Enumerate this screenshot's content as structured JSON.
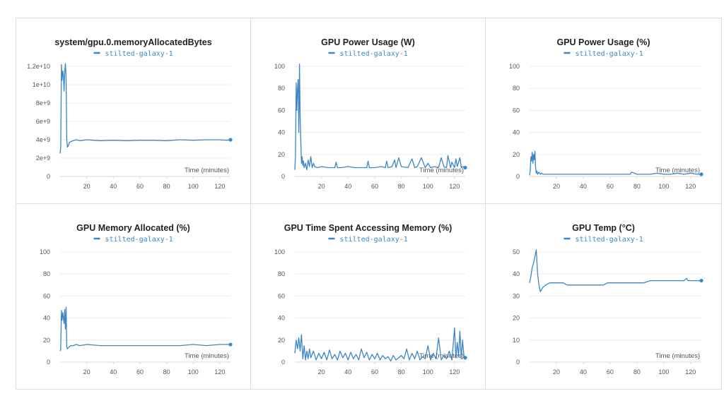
{
  "series_color": "#3d86c6",
  "chart_data": [
    {
      "type": "line",
      "title": "system/gpu.0.memoryAllocatedBytes",
      "legend": [
        "stilted-galaxy-1"
      ],
      "legend_position": "top-center",
      "xlabel": "Time (minutes)",
      "ylabel": "",
      "xlim": [
        0,
        128
      ],
      "ylim": [
        0,
        12000000000
      ],
      "xticks": [
        20,
        40,
        60,
        80,
        100,
        120
      ],
      "yticks": [
        0,
        2000000000,
        4000000000,
        6000000000,
        8000000000,
        10000000000,
        12000000000
      ],
      "ytick_labels": [
        "0",
        "2e+9",
        "4e+9",
        "6e+9",
        "8e+9",
        "1e+10",
        "1.2e+10"
      ],
      "grid": true,
      "series": [
        {
          "name": "stilted-galaxy-1",
          "x": [
            0,
            0.5,
            1,
            1.5,
            2,
            2.5,
            3,
            3.5,
            4,
            4.5,
            5,
            5.5,
            6,
            7,
            8,
            10,
            12,
            15,
            20,
            30,
            40,
            50,
            60,
            70,
            80,
            90,
            100,
            110,
            120,
            125,
            128
          ],
          "y": [
            2500000000,
            3200000000,
            12200000000,
            10500000000,
            11500000000,
            11000000000,
            9300000000,
            11500000000,
            12300000000,
            10800000000,
            4000000000,
            3200000000,
            3300000000,
            3700000000,
            3800000000,
            3900000000,
            4000000000,
            3900000000,
            4000000000,
            3900000000,
            3950000000,
            3900000000,
            3950000000,
            3950000000,
            3900000000,
            4000000000,
            3950000000,
            4000000000,
            4000000000,
            3950000000,
            4000000000
          ]
        }
      ]
    },
    {
      "type": "line",
      "title": "GPU Power Usage (W)",
      "legend": [
        "stilted-galaxy-1"
      ],
      "legend_position": "top-center",
      "xlabel": "Time (minutes)",
      "ylabel": "",
      "xlim": [
        0,
        128
      ],
      "ylim": [
        0,
        100
      ],
      "xticks": [
        20,
        40,
        60,
        80,
        100,
        120
      ],
      "yticks": [
        0,
        20,
        40,
        60,
        80,
        100
      ],
      "ytick_labels": [
        "0",
        "20",
        "40",
        "60",
        "80",
        "100"
      ],
      "grid": true,
      "series": [
        {
          "name": "stilted-galaxy-1",
          "x": [
            0,
            0.5,
            1,
            1.5,
            2,
            2.5,
            3,
            3.5,
            4,
            4.5,
            5,
            5.5,
            6,
            6.5,
            7,
            8,
            9,
            10,
            11,
            12,
            13,
            14,
            15,
            17,
            20,
            25,
            30,
            31,
            32,
            35,
            40,
            45,
            50,
            54,
            55,
            56,
            60,
            65,
            68,
            69,
            70,
            73,
            75,
            76,
            78,
            80,
            85,
            88,
            90,
            92,
            95,
            98,
            100,
            102,
            105,
            108,
            110,
            112,
            114,
            115,
            117,
            118,
            120,
            121,
            122,
            124,
            125,
            126,
            128
          ],
          "y": [
            6,
            18,
            85,
            60,
            80,
            88,
            40,
            102,
            55,
            30,
            12,
            18,
            10,
            14,
            8,
            12,
            6,
            15,
            9,
            18,
            8,
            12,
            9,
            8,
            9,
            8,
            8,
            13,
            8,
            8,
            9,
            8,
            8,
            8,
            14,
            8,
            8,
            9,
            8,
            14,
            8,
            9,
            15,
            8,
            17,
            9,
            8,
            16,
            8,
            9,
            17,
            8,
            12,
            8,
            9,
            8,
            17,
            9,
            8,
            19,
            8,
            13,
            8,
            16,
            9,
            17,
            8,
            9,
            8
          ]
        }
      ]
    },
    {
      "type": "line",
      "title": "GPU Power Usage (%)",
      "legend": [
        "stilted-galaxy-1"
      ],
      "legend_position": "top-center",
      "xlabel": "Time (minutes)",
      "ylabel": "",
      "xlim": [
        0,
        128
      ],
      "ylim": [
        0,
        100
      ],
      "xticks": [
        20,
        40,
        60,
        80,
        100,
        120
      ],
      "yticks": [
        0,
        20,
        40,
        60,
        80,
        100
      ],
      "ytick_labels": [
        "0",
        "20",
        "40",
        "60",
        "80",
        "100"
      ],
      "grid": true,
      "series": [
        {
          "name": "stilted-galaxy-1",
          "x": [
            0,
            0.5,
            1,
            1.5,
            2,
            2.5,
            3,
            3.5,
            4,
            4.5,
            5,
            5.5,
            6,
            7,
            8,
            9,
            10,
            12,
            15,
            20,
            30,
            40,
            50,
            60,
            70,
            75,
            76,
            80,
            90,
            95,
            100,
            105,
            110,
            115,
            120,
            125,
            128
          ],
          "y": [
            1,
            5,
            18,
            14,
            22,
            12,
            20,
            15,
            23,
            8,
            3,
            5,
            2,
            4,
            2,
            3,
            2,
            2,
            2,
            2,
            2,
            2,
            2,
            2,
            2,
            2,
            4,
            2,
            2,
            3,
            2,
            2,
            3,
            2,
            3,
            2,
            2
          ]
        }
      ]
    },
    {
      "type": "line",
      "title": "GPU Memory Allocated (%)",
      "legend": [
        "stilted-galaxy-1"
      ],
      "legend_position": "top-center",
      "xlabel": "Time (minutes)",
      "ylabel": "",
      "xlim": [
        0,
        128
      ],
      "ylim": [
        0,
        100
      ],
      "xticks": [
        20,
        40,
        60,
        80,
        100,
        120
      ],
      "yticks": [
        0,
        20,
        40,
        60,
        80,
        100
      ],
      "ytick_labels": [
        "0",
        "20",
        "40",
        "60",
        "80",
        "100"
      ],
      "grid": true,
      "series": [
        {
          "name": "stilted-galaxy-1",
          "x": [
            0,
            0.5,
            1,
            1.5,
            2,
            2.5,
            3,
            3.5,
            4,
            4.5,
            5,
            5.5,
            6,
            7,
            8,
            10,
            12,
            15,
            20,
            30,
            40,
            50,
            60,
            70,
            80,
            90,
            100,
            110,
            120,
            125,
            128
          ],
          "y": [
            10,
            12,
            47,
            38,
            45,
            40,
            35,
            48,
            30,
            50,
            14,
            12,
            13,
            14,
            15,
            15,
            16,
            15,
            16,
            15,
            15,
            15,
            15,
            15,
            15,
            15,
            16,
            15,
            16,
            16,
            16
          ]
        }
      ]
    },
    {
      "type": "line",
      "title": "GPU Time Spent Accessing Memory (%)",
      "legend": [
        "stilted-galaxy-1"
      ],
      "legend_position": "top-center",
      "xlabel": "Time (minutes)",
      "ylabel": "",
      "xlim": [
        0,
        128
      ],
      "ylim": [
        0,
        100
      ],
      "xticks": [
        20,
        40,
        60,
        80,
        100,
        120
      ],
      "yticks": [
        0,
        20,
        40,
        60,
        80,
        100
      ],
      "ytick_labels": [
        "0",
        "20",
        "40",
        "60",
        "80",
        "100"
      ],
      "grid": true,
      "series": [
        {
          "name": "stilted-galaxy-1",
          "x": [
            0,
            1,
            2,
            3,
            4,
            5,
            6,
            7,
            8,
            9,
            10,
            11,
            12,
            14,
            16,
            18,
            20,
            22,
            24,
            26,
            28,
            30,
            32,
            34,
            36,
            38,
            40,
            42,
            44,
            46,
            48,
            50,
            52,
            54,
            56,
            58,
            60,
            62,
            64,
            66,
            68,
            70,
            72,
            74,
            76,
            78,
            80,
            82,
            84,
            86,
            88,
            90,
            92,
            94,
            96,
            98,
            100,
            102,
            104,
            106,
            108,
            110,
            112,
            114,
            116,
            118,
            120,
            121,
            122,
            123,
            124,
            125,
            126,
            127,
            128
          ],
          "y": [
            8,
            20,
            12,
            22,
            10,
            25,
            3,
            15,
            2,
            10,
            3,
            12,
            4,
            10,
            2,
            8,
            3,
            9,
            2,
            11,
            3,
            7,
            2,
            10,
            4,
            8,
            2,
            9,
            3,
            7,
            2,
            12,
            4,
            9,
            2,
            7,
            3,
            8,
            2,
            6,
            3,
            5,
            1,
            6,
            2,
            4,
            6,
            3,
            12,
            2,
            8,
            3,
            10,
            2,
            5,
            3,
            15,
            2,
            8,
            3,
            22,
            2,
            6,
            3,
            10,
            2,
            31,
            4,
            18,
            5,
            28,
            3,
            20,
            6,
            4
          ]
        }
      ]
    },
    {
      "type": "line",
      "title": "GPU Temp (°C)",
      "legend": [
        "stilted-galaxy-1"
      ],
      "legend_position": "top-center",
      "xlabel": "Time (minutes)",
      "ylabel": "",
      "xlim": [
        0,
        128
      ],
      "ylim": [
        0,
        50
      ],
      "xticks": [
        20,
        40,
        60,
        80,
        100,
        120
      ],
      "yticks": [
        0,
        10,
        20,
        30,
        40,
        50
      ],
      "ytick_labels": [
        "0",
        "10",
        "20",
        "30",
        "40",
        "50"
      ],
      "grid": true,
      "series": [
        {
          "name": "stilted-galaxy-1",
          "x": [
            0,
            1,
            2,
            3,
            4,
            5,
            6,
            7,
            8,
            9,
            10,
            12,
            15,
            20,
            25,
            28,
            30,
            35,
            40,
            45,
            50,
            55,
            58,
            60,
            65,
            70,
            75,
            80,
            85,
            90,
            95,
            100,
            105,
            110,
            115,
            117,
            118,
            120,
            122,
            125,
            128
          ],
          "y": [
            36,
            39,
            43,
            45,
            48,
            51,
            40,
            35,
            32,
            33,
            34,
            35,
            36,
            36,
            36,
            35,
            35,
            35,
            35,
            35,
            35,
            35,
            36,
            36,
            36,
            36,
            36,
            36,
            36,
            37,
            37,
            37,
            37,
            37,
            37,
            38,
            37,
            37,
            37,
            37,
            37
          ]
        }
      ]
    }
  ]
}
